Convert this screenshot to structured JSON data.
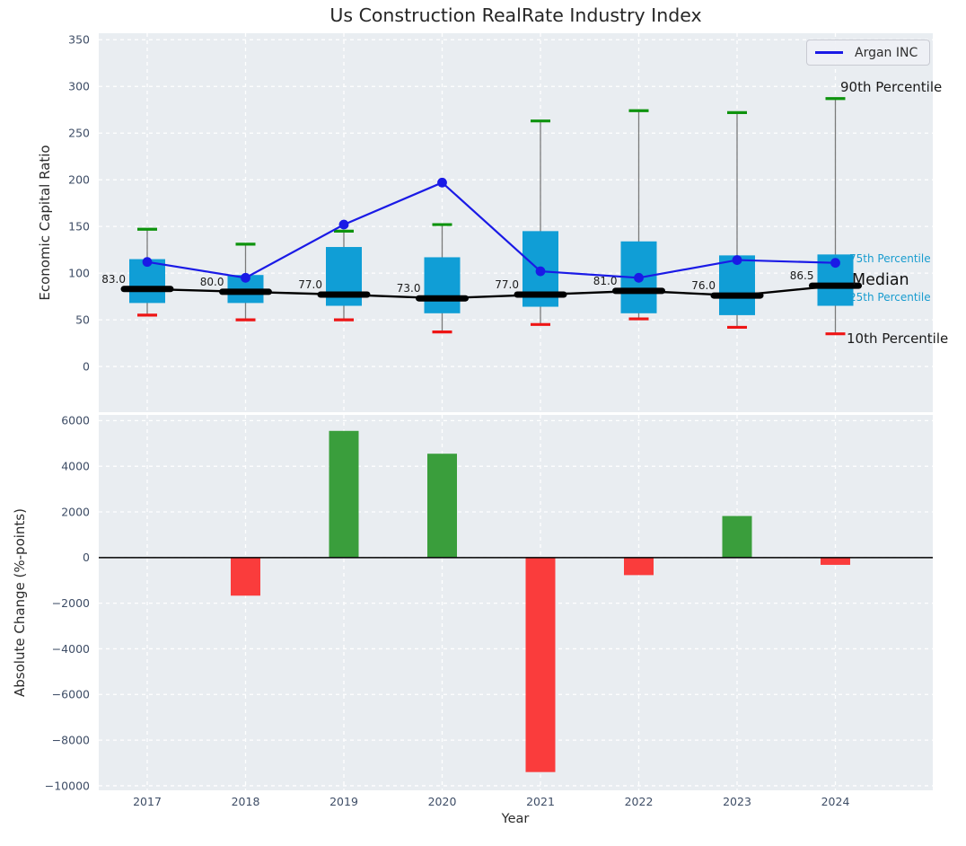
{
  "title": "Us Construction RealRate Industry Index",
  "legend": {
    "label": "Argan INC"
  },
  "annotations": {
    "p90": "90th Percentile",
    "p75": "75th Percentile",
    "median": "Median",
    "p25": "25th Percentile",
    "p10": "10th Percentile"
  },
  "colors": {
    "box_fill": "#109ed6",
    "whisker": "#7a7a7a",
    "cap_high": "#0e930e",
    "cap_low": "#ee1515",
    "median_line": "#000000",
    "argan_line": "#1a1ae6",
    "bar_positive": "#3a9e3c",
    "bar_negative": "#fa3c3c",
    "axes_bg": "#e9edf1",
    "grid": "#ffffff",
    "tick_label": "#3e4d66",
    "median_value_label": "#1a1a1a"
  },
  "chart_data": [
    {
      "type": "boxplot",
      "title": "Us Construction RealRate Industry Index",
      "ylabel": "Economic Capital Ratio",
      "categories": [
        "2017",
        "2018",
        "2019",
        "2020",
        "2021",
        "2022",
        "2023",
        "2024"
      ],
      "ylim": [
        -49,
        357
      ],
      "yticks": [
        350,
        300,
        250,
        200,
        150,
        100,
        50,
        0
      ],
      "grid": true,
      "legend_position": "upper right",
      "series": [
        {
          "name": "90th Percentile",
          "values": [
            147,
            131,
            145,
            152,
            263,
            274,
            272,
            287
          ]
        },
        {
          "name": "75th Percentile",
          "values": [
            115,
            98,
            128,
            117,
            145,
            134,
            119,
            120
          ]
        },
        {
          "name": "Median",
          "values": [
            83.0,
            80.0,
            77.0,
            73.0,
            77.0,
            81.0,
            76.0,
            86.5
          ]
        },
        {
          "name": "25th Percentile",
          "values": [
            68,
            68,
            65,
            57,
            64,
            57,
            55,
            65
          ]
        },
        {
          "name": "10th Percentile",
          "values": [
            55,
            50,
            50,
            37,
            45,
            51,
            42,
            35
          ]
        },
        {
          "name": "Argan INC",
          "values": [
            112,
            95,
            152,
            197,
            102,
            95,
            114,
            111
          ]
        }
      ],
      "median_labels": [
        "83.0",
        "80.0",
        "77.0",
        "73.0",
        "77.0",
        "81.0",
        "76.0",
        "86.5"
      ]
    },
    {
      "type": "bar",
      "ylabel": "Absolute Change (%-points)",
      "xlabel": "Year",
      "categories": [
        "2017",
        "2018",
        "2019",
        "2020",
        "2021",
        "2022",
        "2023",
        "2024"
      ],
      "values": [
        0,
        -1670,
        5550,
        4550,
        -9400,
        -770,
        1820,
        -320
      ],
      "ylim": [
        -10200,
        6250
      ],
      "yticks": [
        6000,
        4000,
        2000,
        0,
        -2000,
        -4000,
        -6000,
        -8000,
        -10000
      ],
      "grid": true
    }
  ]
}
